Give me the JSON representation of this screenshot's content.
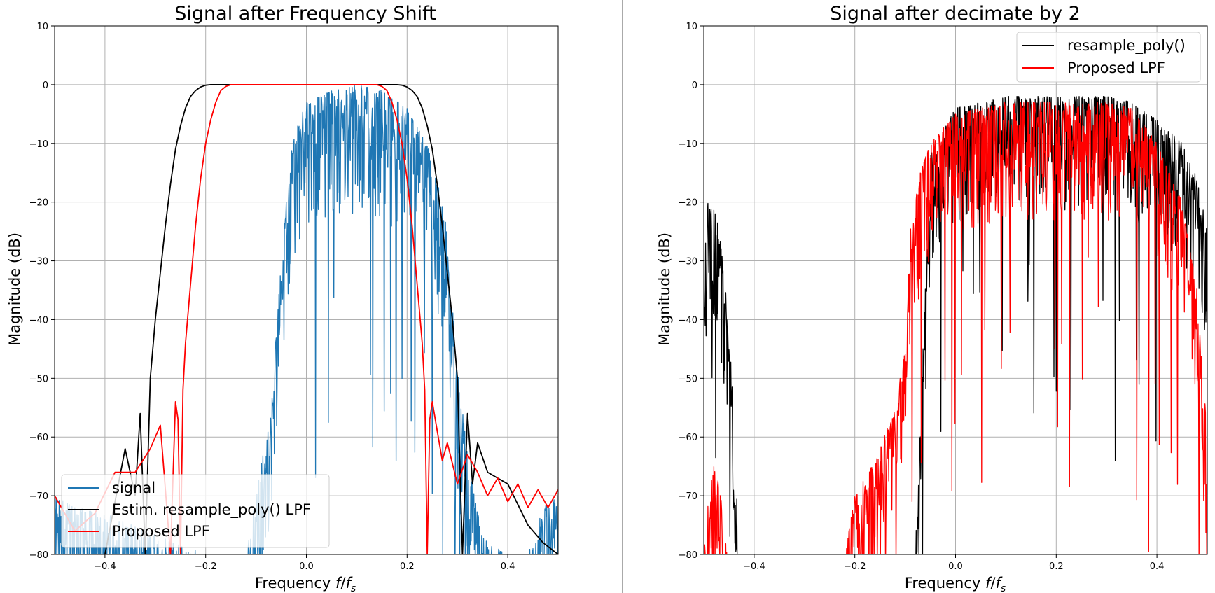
{
  "chart_data": [
    {
      "type": "line",
      "title": "Signal after Frequency Shift",
      "xlabel_main": "Frequency ",
      "xlabel_f": "f",
      "xlabel_slash": "/",
      "xlabel_fs": "f",
      "xlabel_sub": "s",
      "ylabel": "Magnitude (dB)",
      "xlim": [
        -0.5,
        0.5
      ],
      "ylim": [
        -80,
        10
      ],
      "xticks": [
        -0.4,
        -0.2,
        0.0,
        0.2,
        0.4
      ],
      "xticklabels": [
        "−0.4",
        "−0.2",
        "0.0",
        "0.2",
        "0.4"
      ],
      "yticks": [
        10,
        0,
        -10,
        -20,
        -30,
        -40,
        -50,
        -60,
        -70,
        -80
      ],
      "yticklabels": [
        "10",
        "0",
        "−10",
        "−20",
        "−30",
        "−40",
        "−50",
        "−60",
        "−70",
        "−80"
      ],
      "grid": true,
      "legend_position": "lower-left",
      "colors": {
        "signal": "#1f77b4",
        "estim": "#000000",
        "proposed": "#ff0000"
      },
      "series": [
        {
          "name": "signal",
          "kind": "noisy_spectrum",
          "color": "#1f77b4",
          "envelope_x": [
            -0.5,
            -0.46,
            -0.4,
            -0.32,
            -0.2,
            -0.12,
            -0.1,
            -0.07,
            -0.05,
            -0.03,
            0.0,
            0.05,
            0.1,
            0.15,
            0.2,
            0.25,
            0.28,
            0.3,
            0.32,
            0.34,
            0.36,
            0.4,
            0.44,
            0.47,
            0.5
          ],
          "envelope_y": [
            -70,
            -72,
            -73,
            -76,
            -80,
            -80,
            -70,
            -55,
            -30,
            -10,
            -3,
            -1,
            0,
            -1,
            -4,
            -12,
            -25,
            -48,
            -63,
            -73,
            -78,
            -80,
            -80,
            -72,
            -70
          ],
          "dip_depth": [
            0,
            22
          ]
        },
        {
          "name": "Estim. resample_poly() LPF",
          "kind": "filter_response",
          "color": "#000000",
          "x": [
            -0.5,
            -0.4,
            -0.36,
            -0.34,
            -0.33,
            -0.32,
            -0.31,
            -0.3,
            -0.29,
            -0.28,
            -0.27,
            -0.26,
            -0.25,
            -0.24,
            -0.23,
            -0.22,
            -0.21,
            -0.2,
            -0.19,
            -0.17,
            -0.15,
            0.1,
            0.16,
            0.18,
            0.19,
            0.2,
            0.21,
            0.22,
            0.23,
            0.24,
            0.25,
            0.26,
            0.27,
            0.28,
            0.29,
            0.3,
            0.31,
            0.32,
            0.33,
            0.34,
            0.36,
            0.4,
            0.44,
            0.47,
            0.5
          ],
          "y": [
            -80,
            -80,
            -62,
            -70,
            -56,
            -80,
            -50,
            -40,
            -32,
            -24,
            -17,
            -11,
            -7,
            -4,
            -2,
            -1,
            -0.4,
            -0.1,
            0,
            0,
            0,
            0,
            0,
            0,
            -0.1,
            -0.4,
            -1,
            -2,
            -4,
            -7,
            -11,
            -17,
            -24,
            -32,
            -40,
            -50,
            -80,
            -56,
            -68,
            -61,
            -66,
            -68,
            -75,
            -78,
            -80
          ]
        },
        {
          "name": "Proposed LPF",
          "kind": "filter_response",
          "color": "#ff0000",
          "x": [
            -0.5,
            -0.46,
            -0.42,
            -0.38,
            -0.34,
            -0.31,
            -0.29,
            -0.27,
            -0.26,
            -0.255,
            -0.25,
            -0.245,
            -0.24,
            -0.23,
            -0.22,
            -0.21,
            -0.2,
            -0.19,
            -0.18,
            -0.17,
            -0.16,
            -0.15,
            0.14,
            0.15,
            0.16,
            0.17,
            0.18,
            0.19,
            0.2,
            0.21,
            0.22,
            0.23,
            0.235,
            0.24,
            0.245,
            0.25,
            0.26,
            0.27,
            0.28,
            0.3,
            0.32,
            0.34,
            0.36,
            0.38,
            0.4,
            0.42,
            0.44,
            0.46,
            0.48,
            0.5
          ],
          "y": [
            -70,
            -76,
            -73,
            -66,
            -66,
            -62,
            -58,
            -80,
            -54,
            -57,
            -80,
            -52,
            -44,
            -34,
            -24,
            -16,
            -10,
            -6,
            -3,
            -1,
            -0.3,
            0,
            0,
            -0.3,
            -1,
            -3,
            -6,
            -10,
            -16,
            -24,
            -34,
            -44,
            -52,
            -80,
            -57,
            -54,
            -59,
            -64,
            -61,
            -68,
            -63,
            -66,
            -70,
            -67,
            -71,
            -68,
            -72,
            -69,
            -72,
            -69
          ]
        }
      ]
    },
    {
      "type": "line",
      "title": "Signal after decimate by 2",
      "xlabel_main": "Frequency ",
      "xlabel_f": "f",
      "xlabel_slash": "/",
      "xlabel_fs": "f",
      "xlabel_sub": "s",
      "ylabel": "Magnitude (dB)",
      "xlim": [
        -0.5,
        0.5
      ],
      "ylim": [
        -80,
        10
      ],
      "xticks": [
        -0.4,
        -0.2,
        0.0,
        0.2,
        0.4
      ],
      "xticklabels": [
        "−0.4",
        "−0.2",
        "0.0",
        "0.2",
        "0.4"
      ],
      "yticks": [
        10,
        0,
        -10,
        -20,
        -30,
        -40,
        -50,
        -60,
        -70,
        -80
      ],
      "yticklabels": [
        "10",
        "0",
        "−10",
        "−20",
        "−30",
        "−40",
        "−50",
        "−60",
        "−70",
        "−80"
      ],
      "grid": true,
      "legend_position": "upper-right",
      "colors": {
        "resample": "#000000",
        "proposed": "#ff0000"
      },
      "series": [
        {
          "name": "resample_poly()",
          "kind": "noisy_spectrum",
          "color": "#000000",
          "envelope_x": [
            -0.5,
            -0.49,
            -0.47,
            -0.45,
            -0.44,
            -0.43,
            -0.42,
            -0.2,
            -0.08,
            -0.05,
            0.0,
            0.1,
            0.2,
            0.3,
            0.35,
            0.4,
            0.45,
            0.48,
            0.5
          ],
          "envelope_y": [
            -30,
            -18,
            -24,
            -40,
            -58,
            -80,
            -80,
            -80,
            -80,
            -12,
            -4,
            -2,
            -2,
            -2,
            -3,
            -6,
            -10,
            -16,
            -25
          ],
          "dip_depth": [
            0,
            20
          ]
        },
        {
          "name": "Proposed LPF",
          "kind": "noisy_spectrum",
          "color": "#ff0000",
          "envelope_x": [
            -0.5,
            -0.49,
            -0.48,
            -0.47,
            -0.46,
            -0.45,
            -0.44,
            -0.22,
            -0.2,
            -0.16,
            -0.12,
            -0.1,
            -0.09,
            -0.07,
            -0.05,
            0.0,
            0.1,
            0.2,
            0.3,
            0.35,
            0.4,
            0.45,
            0.48,
            0.5
          ],
          "envelope_y": [
            -80,
            -70,
            -65,
            -68,
            -74,
            -80,
            -80,
            -80,
            -70,
            -64,
            -55,
            -45,
            -25,
            -15,
            -10,
            -5,
            -3,
            -3,
            -3,
            -4,
            -10,
            -20,
            -35,
            -60
          ],
          "dip_depth": [
            0,
            20
          ]
        }
      ]
    }
  ]
}
